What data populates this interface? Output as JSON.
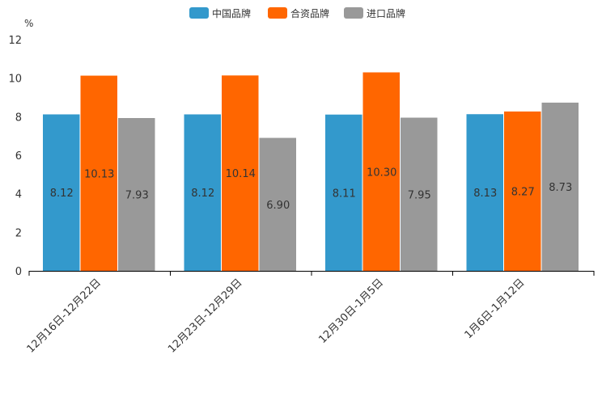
{
  "chart_data": {
    "type": "bar",
    "title": "",
    "xlabel": "",
    "ylabel": "%",
    "ylim": [
      0,
      12
    ],
    "yticks": [
      "0",
      "2",
      "4",
      "6",
      "8",
      "10",
      "12"
    ],
    "categories": [
      "12月16日-12月22日",
      "12月23日-12月29日",
      "12月30日-1月5日",
      "1月6日-1月12日"
    ],
    "series": [
      {
        "name": "中国品牌",
        "color": "#3399cc",
        "values": [
          8.12,
          8.12,
          8.11,
          8.13
        ],
        "labels": [
          "8.12",
          "8.12",
          "8.11",
          "8.13"
        ]
      },
      {
        "name": "合资品牌",
        "color": "#ff6600",
        "values": [
          10.13,
          10.14,
          10.3,
          8.27
        ],
        "labels": [
          "10.13",
          "10.14",
          "10.30",
          "8.27"
        ]
      },
      {
        "name": "进口品牌",
        "color": "#999999",
        "values": [
          7.93,
          6.9,
          7.95,
          8.73
        ],
        "labels": [
          "7.93",
          "6.90",
          "7.95",
          "8.73"
        ]
      }
    ],
    "legend_position": "top-center",
    "grid": false
  }
}
